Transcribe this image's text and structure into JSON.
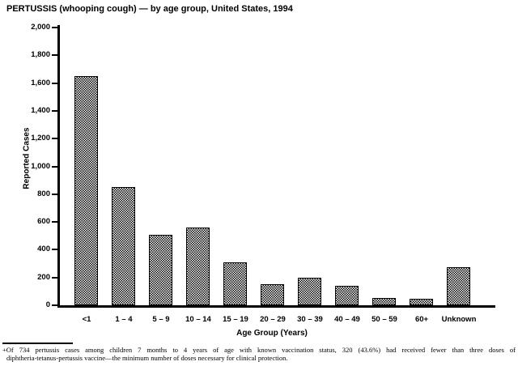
{
  "title": "PERTUSSIS (whooping cough) — by age group, United States, 1994",
  "chart_data": {
    "type": "bar",
    "title": "PERTUSSIS (whooping cough) — by age group, United States, 1994",
    "xlabel": "Age Group (Years)",
    "ylabel": "Reported Cases",
    "categories": [
      "<1",
      "1 – 4",
      "5 – 9",
      "10 – 14",
      "15 – 19",
      "20 – 29",
      "30 – 39",
      "40 – 49",
      "50 – 59",
      "60+",
      "Unknown"
    ],
    "values": [
      1650,
      850,
      505,
      560,
      310,
      150,
      200,
      140,
      55,
      45,
      275
    ],
    "ylim": [
      0,
      2000
    ],
    "ytick_interval": 200,
    "ytick_labels": [
      "0",
      "200",
      "400",
      "600",
      "800",
      "1,000",
      "1,200",
      "1,400",
      "1,600",
      "1,800",
      "2,000"
    ],
    "grid": false,
    "legend": "none",
    "bar_fill": "black-and-white checkerboard dither pattern with black outline",
    "bar_color": "#000000",
    "background_color": "#ffffff"
  },
  "footnote": {
    "symbol": "+",
    "line1": "+Of 734 pertussis cases among children 7 months to 4 years of age with known vaccination status, 320 (43.6%) had received fewer than three doses of",
    "line2": "diphtheria-tetanus-pertussis vaccine—the minimum number of doses necessary for clinical protection.",
    "full_text": "+Of 734 pertussis cases among children 7 months to 4 years of age with known vaccination status, 320 (43.6%) had received fewer than three doses of diphtheria-tetanus-pertussis vaccine—the minimum number of doses necessary for clinical protection."
  }
}
